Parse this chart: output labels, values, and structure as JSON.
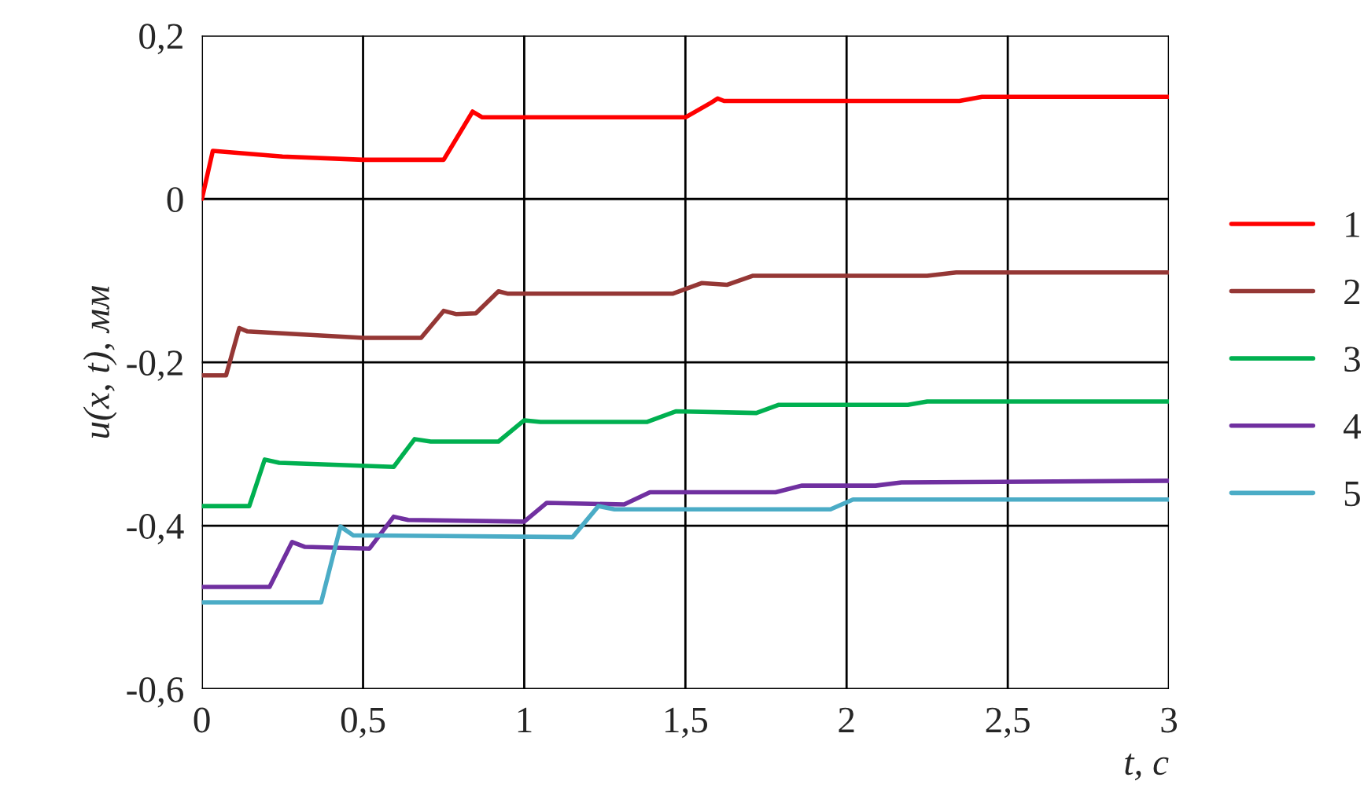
{
  "chart_data": {
    "type": "line",
    "xlabel": "t, с",
    "ylabel": "u(x, t), мм",
    "xlim": [
      0,
      3
    ],
    "ylim": [
      -0.6,
      0.2
    ],
    "xticks": [
      0,
      {
        "value": 0.5,
        "label": "0,5"
      },
      1,
      {
        "value": 1.5,
        "label": "1,5"
      },
      2,
      {
        "value": 2.5,
        "label": "2,5"
      },
      3
    ],
    "yticks": [
      {
        "value": -0.6,
        "label": "-0,6"
      },
      {
        "value": -0.4,
        "label": "-0,4"
      },
      {
        "value": -0.2,
        "label": "-0,2"
      },
      0,
      {
        "value": 0.2,
        "label": "0,2"
      }
    ],
    "grid": true,
    "legend": "right",
    "marker": "none",
    "line_style": "solid",
    "series": [
      {
        "name": "1",
        "color": "#ff0000",
        "x": [
          0,
          0.034,
          0.25,
          0.5,
          0.75,
          0.84,
          0.87,
          1.0,
          1.5,
          1.58,
          1.6,
          1.62,
          2.0,
          2.35,
          2.42,
          3.0
        ],
        "values": [
          0,
          0.059,
          0.052,
          0.048,
          0.048,
          0.107,
          0.1,
          0.1,
          0.1,
          0.118,
          0.123,
          0.12,
          0.12,
          0.12,
          0.125,
          0.125
        ]
      },
      {
        "name": "2",
        "color": "#953735",
        "x": [
          0,
          0.075,
          0.116,
          0.14,
          0.5,
          0.68,
          0.75,
          0.79,
          0.85,
          0.92,
          0.95,
          1.46,
          1.55,
          1.63,
          1.71,
          2.25,
          2.34,
          3.0
        ],
        "values": [
          -0.216,
          -0.216,
          -0.158,
          -0.162,
          -0.17,
          -0.17,
          -0.137,
          -0.141,
          -0.14,
          -0.113,
          -0.116,
          -0.116,
          -0.103,
          -0.105,
          -0.094,
          -0.094,
          -0.09,
          -0.09
        ]
      },
      {
        "name": "3",
        "color": "#00b050",
        "x": [
          0,
          0.147,
          0.195,
          0.24,
          0.595,
          0.66,
          0.71,
          0.92,
          1.0,
          1.05,
          1.38,
          1.47,
          1.72,
          1.79,
          2.19,
          2.25,
          3.0
        ],
        "values": [
          -0.376,
          -0.376,
          -0.319,
          -0.323,
          -0.328,
          -0.294,
          -0.297,
          -0.297,
          -0.271,
          -0.273,
          -0.273,
          -0.26,
          -0.262,
          -0.252,
          -0.252,
          -0.248,
          -0.248
        ]
      },
      {
        "name": "4",
        "color": "#7030a0",
        "x": [
          0,
          0.21,
          0.28,
          0.32,
          0.52,
          0.595,
          0.64,
          1.0,
          1.07,
          1.31,
          1.39,
          1.78,
          1.86,
          2.09,
          2.17,
          3.0
        ],
        "values": [
          -0.475,
          -0.475,
          -0.42,
          -0.426,
          -0.428,
          -0.389,
          -0.393,
          -0.395,
          -0.372,
          -0.374,
          -0.359,
          -0.359,
          -0.351,
          -0.351,
          -0.347,
          -0.345
        ]
      },
      {
        "name": "5",
        "color": "#4bacc6",
        "x": [
          0,
          0.37,
          0.43,
          0.47,
          0.53,
          1.15,
          1.23,
          1.28,
          1.95,
          2.02,
          3.0
        ],
        "values": [
          -0.494,
          -0.494,
          -0.401,
          -0.412,
          -0.412,
          -0.414,
          -0.376,
          -0.38,
          -0.38,
          -0.368,
          -0.368
        ]
      }
    ]
  }
}
